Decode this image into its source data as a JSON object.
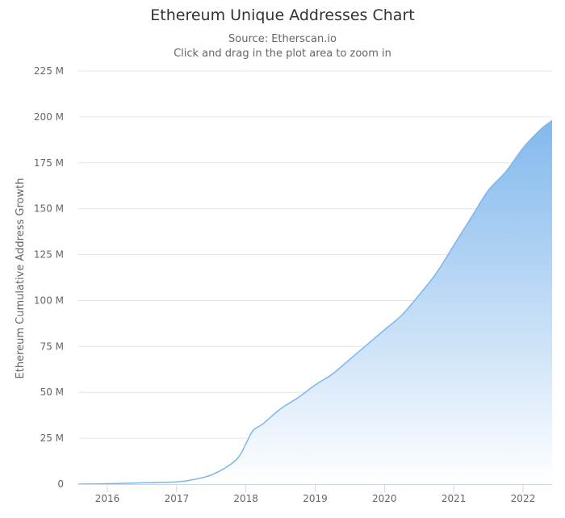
{
  "chart_data": {
    "type": "area",
    "title": "Ethereum Unique Addresses Chart",
    "subtitle": "Source: Etherscan.io",
    "subtitle2": "Click and drag in the plot area to zoom in",
    "ylabel": "Ethereum Cumulative Address Growth",
    "xlabel": "",
    "ylim": [
      0,
      225000000
    ],
    "xlim": [
      2015.58,
      2022.42
    ],
    "y_ticks": [
      {
        "value": 0,
        "label": "0"
      },
      {
        "value": 25000000,
        "label": "25 M"
      },
      {
        "value": 50000000,
        "label": "50 M"
      },
      {
        "value": 75000000,
        "label": "75 M"
      },
      {
        "value": 100000000,
        "label": "100 M"
      },
      {
        "value": 125000000,
        "label": "125 M"
      },
      {
        "value": 150000000,
        "label": "150 M"
      },
      {
        "value": 175000000,
        "label": "175 M"
      },
      {
        "value": 200000000,
        "label": "200 M"
      },
      {
        "value": 225000000,
        "label": "225 M"
      }
    ],
    "x_ticks": [
      {
        "value": 2016,
        "label": "2016"
      },
      {
        "value": 2017,
        "label": "2017"
      },
      {
        "value": 2018,
        "label": "2018"
      },
      {
        "value": 2019,
        "label": "2019"
      },
      {
        "value": 2020,
        "label": "2020"
      },
      {
        "value": 2021,
        "label": "2021"
      },
      {
        "value": 2022,
        "label": "2022"
      }
    ],
    "grid": true,
    "legend": "none",
    "colors": {
      "line": "#7cb5ec",
      "fill_top": "#7cb5ec",
      "fill_bottom": "#ffffff",
      "grid": "#e6e6e6",
      "axis": "#ccd6eb"
    },
    "series": [
      {
        "x": [
          2015.58,
          2016.0,
          2016.5,
          2017.0,
          2017.25,
          2017.5,
          2017.75,
          2017.9,
          2018.0,
          2018.1,
          2018.25,
          2018.5,
          2018.75,
          2019.0,
          2019.25,
          2019.5,
          2019.75,
          2020.0,
          2020.25,
          2020.5,
          2020.75,
          2021.0,
          2021.25,
          2021.5,
          2021.75,
          2022.0,
          2022.25,
          2022.42
        ],
        "y": [
          0,
          200000,
          700000,
          1200000,
          2500000,
          5000000,
          10000000,
          15000000,
          22000000,
          29000000,
          33000000,
          41000000,
          47000000,
          54000000,
          60000000,
          68000000,
          76000000,
          84000000,
          92000000,
          103000000,
          115000000,
          130000000,
          145000000,
          160000000,
          170000000,
          183000000,
          193000000,
          198000000
        ]
      }
    ]
  }
}
